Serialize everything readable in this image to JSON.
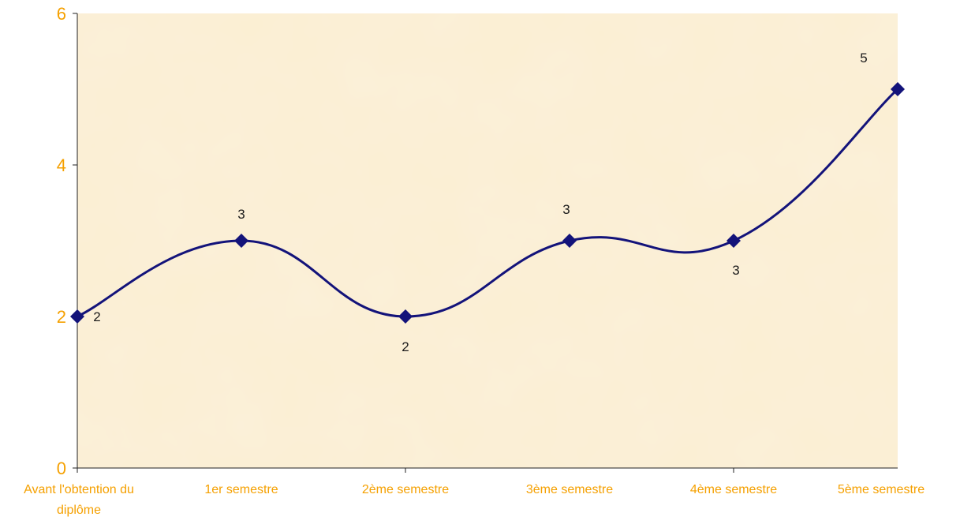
{
  "chart_data": {
    "type": "line",
    "categories": [
      "Avant l'obtention du diplôme",
      "1er semestre",
      "2ème semestre",
      "3ème semestre",
      "4ème semestre",
      "5ème semestre"
    ],
    "series": [
      {
        "values": [
          2,
          3,
          2,
          3,
          3,
          5
        ]
      }
    ],
    "data_labels": [
      "2",
      "3",
      "2",
      "3",
      "3",
      "5"
    ],
    "y_ticks": [
      "0",
      "2",
      "4",
      "6"
    ],
    "ylim": [
      0,
      6
    ],
    "smooth": true,
    "grid": false,
    "legend": "none",
    "colors": {
      "line": "#13137a",
      "marker": "#13137a",
      "tick_text": "#f5a000",
      "plot_background": "#fbefd3"
    }
  }
}
